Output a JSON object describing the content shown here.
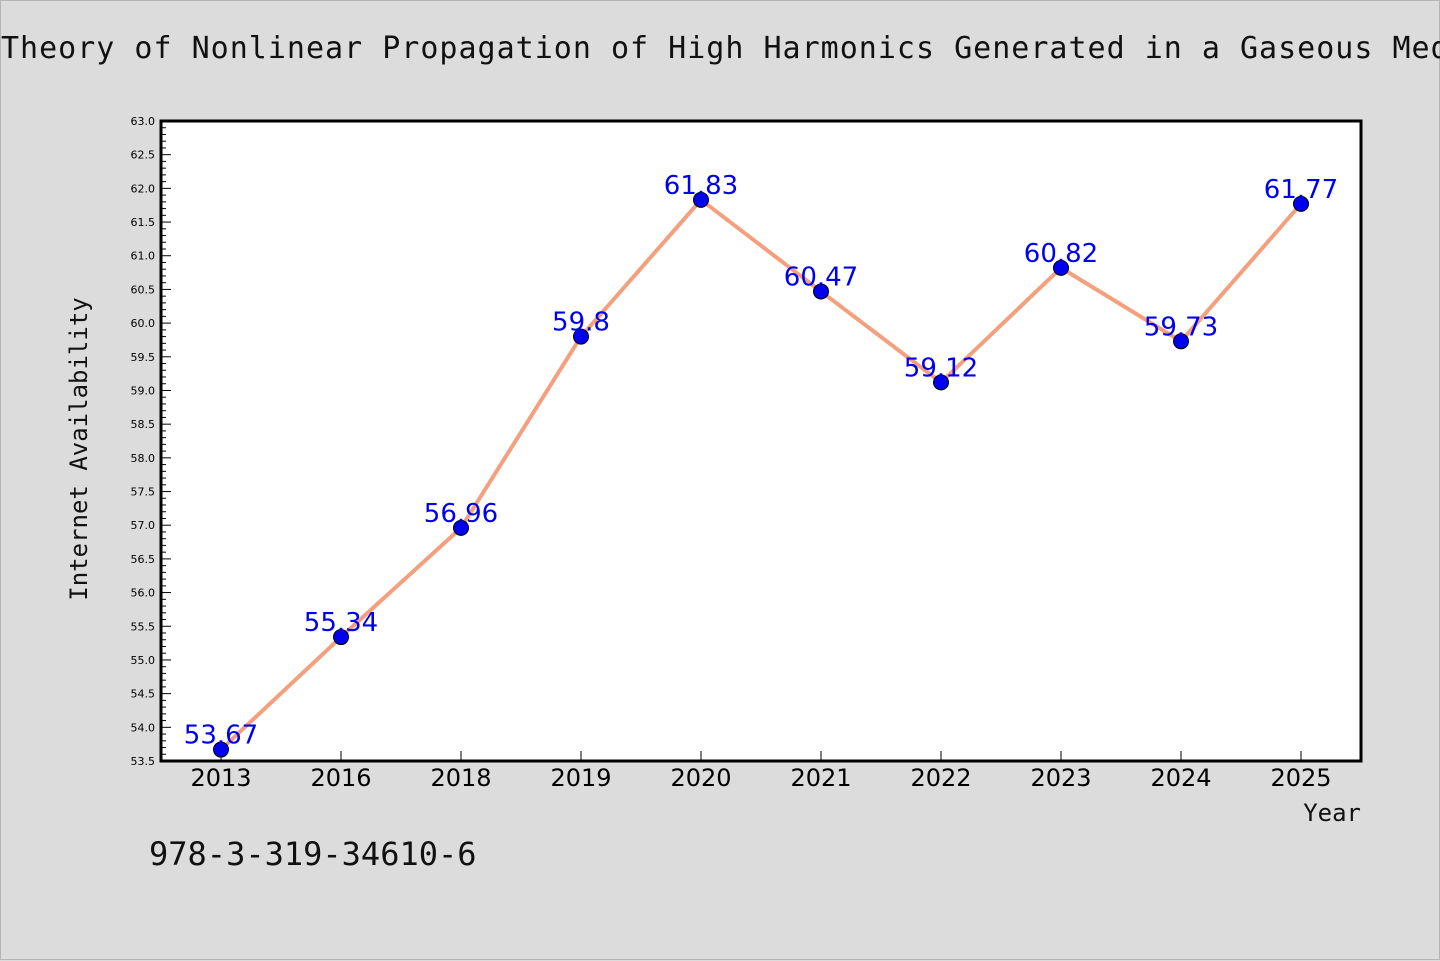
{
  "chart_data": {
    "type": "line",
    "title": "Theory of Nonlinear Propagation of High Harmonics Generated in a Gaseous Medium",
    "xlabel": "Year",
    "ylabel": "Internet Availability",
    "categories": [
      "2013",
      "2016",
      "2018",
      "2019",
      "2020",
      "2021",
      "2022",
      "2023",
      "2024",
      "2025"
    ],
    "series": [
      {
        "values": [
          53.67,
          55.34,
          56.96,
          59.8,
          61.83,
          60.47,
          59.12,
          60.82,
          59.73,
          61.77
        ],
        "data_labels": [
          "53.67",
          "55.34",
          "56.96",
          "59.8",
          "61.83",
          "60.47",
          "59.12",
          "60.82",
          "59.73",
          "61.77"
        ],
        "line_color": "#f4a07e",
        "marker_color": "#0000ee"
      }
    ],
    "ylim": [
      53.5,
      63.0
    ],
    "yticks": [
      "53.5",
      "54.0",
      "54.5",
      "55.0",
      "55.5",
      "56.0",
      "56.5",
      "57.0",
      "57.5",
      "58.0",
      "58.5",
      "59.0",
      "59.5",
      "60.0",
      "60.5",
      "61.0",
      "61.5",
      "62.0",
      "62.5",
      "63.0"
    ],
    "grid": false,
    "legend": "none"
  },
  "footer": {
    "isbn": "978-3-319-34610-6"
  }
}
